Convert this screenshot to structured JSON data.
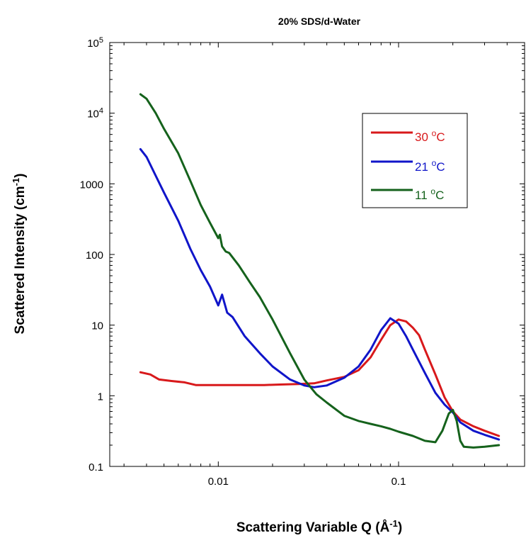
{
  "chart_data": {
    "type": "line",
    "title": "20% SDS/d-Water",
    "xlabel": {
      "main": "Scattering Variable Q (",
      "unit": "Å",
      "sup": "-1",
      "close": ")"
    },
    "ylabel": {
      "main": "Scattered Intensity (cm",
      "sup": "-1",
      "close": ")"
    },
    "xscale": "log",
    "yscale": "log",
    "xlim": [
      0.0025,
      0.5
    ],
    "ylim": [
      0.1,
      100000
    ],
    "x_ticks": [
      {
        "value": 0.01,
        "label": "0.01"
      },
      {
        "value": 0.1,
        "label": "0.1"
      }
    ],
    "y_ticks": [
      {
        "value": 0.1,
        "label": "0.1",
        "sup": ""
      },
      {
        "value": 1,
        "label": "1",
        "sup": ""
      },
      {
        "value": 10,
        "label": "10",
        "sup": ""
      },
      {
        "value": 100,
        "label": "100",
        "sup": ""
      },
      {
        "value": 1000,
        "label": "1000",
        "sup": ""
      },
      {
        "value": 10000,
        "label": "10",
        "sup": "4"
      },
      {
        "value": 100000,
        "label": "10",
        "sup": "5"
      }
    ],
    "grid": false,
    "legend_position": "top-right",
    "series": [
      {
        "name": "30 °C",
        "label_main": "30 ",
        "label_sup": "o",
        "label_unit": "C",
        "color": "#d8191b",
        "points": [
          [
            0.0037,
            2.15
          ],
          [
            0.0042,
            2.0
          ],
          [
            0.0047,
            1.7
          ],
          [
            0.0055,
            1.62
          ],
          [
            0.0065,
            1.55
          ],
          [
            0.0075,
            1.42
          ],
          [
            0.009,
            1.42
          ],
          [
            0.011,
            1.42
          ],
          [
            0.014,
            1.42
          ],
          [
            0.018,
            1.42
          ],
          [
            0.022,
            1.44
          ],
          [
            0.028,
            1.47
          ],
          [
            0.034,
            1.5
          ],
          [
            0.04,
            1.65
          ],
          [
            0.05,
            1.85
          ],
          [
            0.06,
            2.3
          ],
          [
            0.07,
            3.5
          ],
          [
            0.08,
            6.2
          ],
          [
            0.09,
            10
          ],
          [
            0.1,
            12
          ],
          [
            0.11,
            11.3
          ],
          [
            0.12,
            9.2
          ],
          [
            0.13,
            7.2
          ],
          [
            0.14,
            4.5
          ],
          [
            0.16,
            2.0
          ],
          [
            0.18,
            0.95
          ],
          [
            0.2,
            0.6
          ],
          [
            0.22,
            0.46
          ],
          [
            0.26,
            0.37
          ],
          [
            0.3,
            0.32
          ],
          [
            0.36,
            0.27
          ]
        ]
      },
      {
        "name": "21 °C",
        "label_main": "21 ",
        "label_sup": "o",
        "label_unit": "C",
        "color": "#1015c9",
        "points": [
          [
            0.0037,
            3100
          ],
          [
            0.004,
            2400
          ],
          [
            0.0045,
            1300
          ],
          [
            0.005,
            750
          ],
          [
            0.006,
            300
          ],
          [
            0.007,
            120
          ],
          [
            0.008,
            60
          ],
          [
            0.009,
            35
          ],
          [
            0.01,
            19
          ],
          [
            0.0105,
            27
          ],
          [
            0.0112,
            15
          ],
          [
            0.012,
            13
          ],
          [
            0.014,
            7
          ],
          [
            0.017,
            4
          ],
          [
            0.02,
            2.6
          ],
          [
            0.025,
            1.7
          ],
          [
            0.03,
            1.4
          ],
          [
            0.034,
            1.32
          ],
          [
            0.04,
            1.4
          ],
          [
            0.05,
            1.8
          ],
          [
            0.06,
            2.6
          ],
          [
            0.07,
            4.5
          ],
          [
            0.08,
            8.5
          ],
          [
            0.09,
            12.5
          ],
          [
            0.1,
            10.5
          ],
          [
            0.11,
            7
          ],
          [
            0.12,
            4.5
          ],
          [
            0.14,
            2.1
          ],
          [
            0.16,
            1.1
          ],
          [
            0.18,
            0.75
          ],
          [
            0.2,
            0.58
          ],
          [
            0.22,
            0.42
          ],
          [
            0.26,
            0.32
          ],
          [
            0.3,
            0.28
          ],
          [
            0.36,
            0.24
          ]
        ]
      },
      {
        "name": "11 °C",
        "label_main": "11 ",
        "label_sup": "o",
        "label_unit": "C",
        "color": "#15621c",
        "points": [
          [
            0.0037,
            18500
          ],
          [
            0.004,
            16000
          ],
          [
            0.0045,
            10000
          ],
          [
            0.005,
            6000
          ],
          [
            0.006,
            2700
          ],
          [
            0.007,
            1100
          ],
          [
            0.008,
            500
          ],
          [
            0.009,
            280
          ],
          [
            0.01,
            170
          ],
          [
            0.0102,
            190
          ],
          [
            0.0105,
            130
          ],
          [
            0.011,
            110
          ],
          [
            0.0115,
            105
          ],
          [
            0.013,
            70
          ],
          [
            0.015,
            40
          ],
          [
            0.017,
            25
          ],
          [
            0.02,
            12
          ],
          [
            0.025,
            4
          ],
          [
            0.03,
            1.7
          ],
          [
            0.035,
            1.05
          ],
          [
            0.04,
            0.8
          ],
          [
            0.05,
            0.52
          ],
          [
            0.06,
            0.44
          ],
          [
            0.07,
            0.4
          ],
          [
            0.08,
            0.37
          ],
          [
            0.09,
            0.34
          ],
          [
            0.1,
            0.31
          ],
          [
            0.12,
            0.27
          ],
          [
            0.14,
            0.23
          ],
          [
            0.16,
            0.22
          ],
          [
            0.175,
            0.32
          ],
          [
            0.19,
            0.56
          ],
          [
            0.2,
            0.63
          ],
          [
            0.21,
            0.44
          ],
          [
            0.22,
            0.23
          ],
          [
            0.23,
            0.19
          ],
          [
            0.26,
            0.185
          ],
          [
            0.3,
            0.19
          ],
          [
            0.36,
            0.2
          ]
        ]
      }
    ]
  }
}
